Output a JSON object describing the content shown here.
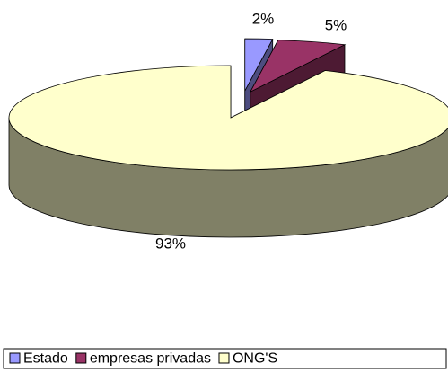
{
  "chart_data": {
    "type": "pie",
    "categories": [
      "Estado",
      "empresas privadas",
      "ONG'S"
    ],
    "values": [
      2,
      5,
      93
    ],
    "value_labels": [
      "2%",
      "5%",
      "93%"
    ],
    "colors": [
      "#9999ff",
      "#993366",
      "#ffffcc"
    ],
    "legend": "bottom"
  }
}
